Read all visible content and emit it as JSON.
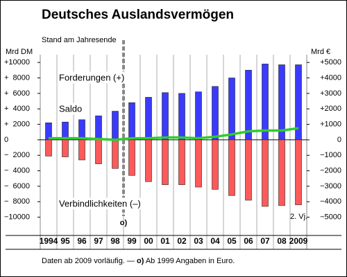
{
  "chart_data": {
    "type": "bar",
    "title": "Deutsches Auslandsvermögen",
    "subtitle": "Stand am Jahresende",
    "y_label": "Mrd DM",
    "y2_label": "Mrd €",
    "categories": [
      "1994",
      "95",
      "96",
      "97",
      "98",
      "99",
      "00",
      "01",
      "02",
      "03",
      "04",
      "05",
      "06",
      "07",
      "08",
      "2009"
    ],
    "series": [
      {
        "name": "Forderungen (+)",
        "color": "#3b3bff",
        "values": [
          2200,
          2300,
          2600,
          3100,
          3700,
          4800,
          5500,
          6100,
          6000,
          6200,
          6900,
          8000,
          9000,
          9800,
          9700,
          9700
        ]
      },
      {
        "name": "Verbindlichkeiten (–)",
        "color": "#ff5a5a",
        "values": [
          -2100,
          -2200,
          -2600,
          -3100,
          -3700,
          -4600,
          -5400,
          -5800,
          -5800,
          -6100,
          -6400,
          -7200,
          -7800,
          -8600,
          -8500,
          -8400
        ]
      },
      {
        "name": "Saldo",
        "color": "#2ecc2e",
        "values": [
          200,
          200,
          200,
          100,
          0,
          200,
          200,
          300,
          300,
          200,
          400,
          700,
          1100,
          1200,
          1200,
          1500
        ]
      }
    ],
    "ylim": [
      -12000,
      11000
    ],
    "yticks": [
      {
        "value": 10000,
        "label": "+10000"
      },
      {
        "value": 8000,
        "label": "+  8000"
      },
      {
        "value": 6000,
        "label": "+  6000"
      },
      {
        "value": 4000,
        "label": "+  4000"
      },
      {
        "value": 2000,
        "label": "+  2000"
      },
      0,
      {
        "value": -2000,
        "label": "−  2000"
      },
      {
        "value": -4000,
        "label": "−  4000"
      },
      {
        "value": -6000,
        "label": "−  6000"
      },
      {
        "value": -8000,
        "label": "−  8000"
      },
      {
        "value": -10000,
        "label": "−10000"
      }
    ],
    "y2lim": [
      -6000,
      5500
    ],
    "y2ticks": [
      {
        "value": 5000,
        "label": "+5000"
      },
      {
        "value": 4000,
        "label": "+4000"
      },
      {
        "value": 3000,
        "label": "+3000"
      },
      {
        "value": 2000,
        "label": "+2000"
      },
      {
        "value": 1000,
        "label": "+1000"
      },
      0,
      {
        "value": -1000,
        "label": "−1000"
      },
      {
        "value": -2000,
        "label": "−2000"
      },
      {
        "value": -3000,
        "label": "−3000"
      },
      {
        "value": -4000,
        "label": "−4000"
      },
      {
        "value": -5000,
        "label": "−5000"
      }
    ],
    "annotations": {
      "break": "o)",
      "quarter": "2. Vj."
    },
    "footnote": [
      "Daten ab 2009 vorläufig. — ",
      "o)",
      " Ab 1999 Angaben in Euro."
    ]
  }
}
